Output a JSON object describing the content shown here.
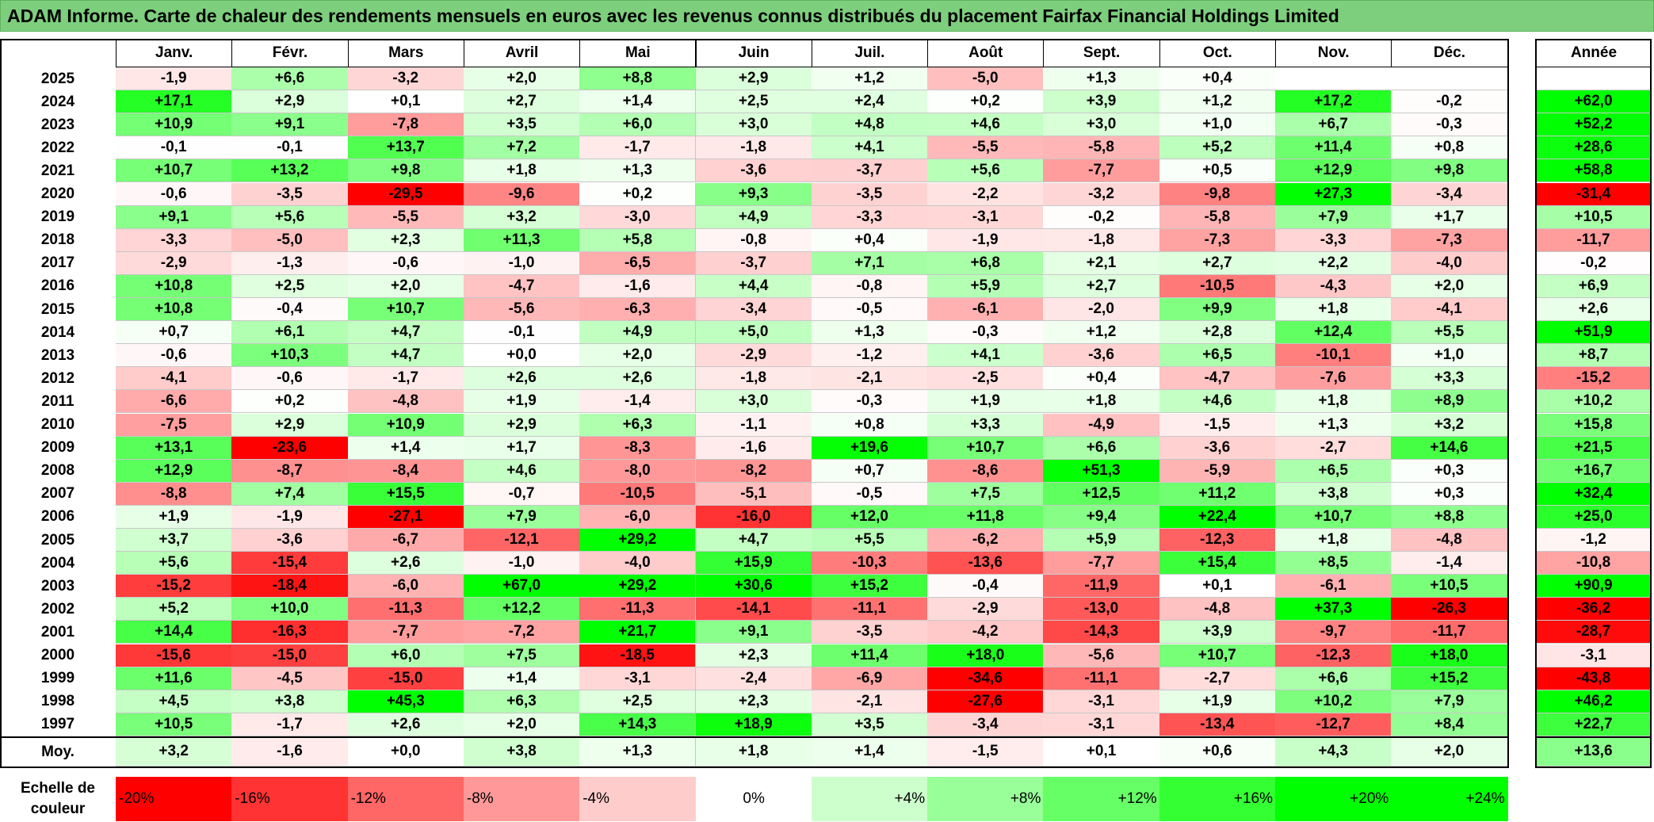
{
  "title": "ADAM Informe. Carte de chaleur des rendements mensuels en euros avec les revenus connus distribués du placement Fairfax Financial Holdings Limited",
  "chart_data": {
    "type": "heatmap",
    "columns": [
      "Janv.",
      "Févr.",
      "Mars",
      "Avril",
      "Mai",
      "Juin",
      "Juil.",
      "Août",
      "Sept.",
      "Oct.",
      "Nov.",
      "Déc."
    ],
    "year_header": "Année",
    "rows": [
      {
        "year": "2025",
        "values": [
          "-1,9",
          "+6,6",
          "-3,2",
          "+2,0",
          "+8,8",
          "+2,9",
          "+1,2",
          "-5,0",
          "+1,3",
          "+0,4",
          "",
          ""
        ],
        "total": ""
      },
      {
        "year": "2024",
        "values": [
          "+17,1",
          "+2,9",
          "+0,1",
          "+2,7",
          "+1,4",
          "+2,5",
          "+2,4",
          "+0,2",
          "+3,9",
          "+1,2",
          "+17,2",
          "-0,2"
        ],
        "total": "+62,0"
      },
      {
        "year": "2023",
        "values": [
          "+10,9",
          "+9,1",
          "-7,8",
          "+3,5",
          "+6,0",
          "+3,0",
          "+4,8",
          "+4,6",
          "+3,0",
          "+1,0",
          "+6,7",
          "-0,3"
        ],
        "total": "+52,2"
      },
      {
        "year": "2022",
        "values": [
          "-0,1",
          "-0,1",
          "+13,7",
          "+7,2",
          "-1,7",
          "-1,8",
          "+4,1",
          "-5,5",
          "-5,8",
          "+5,2",
          "+11,4",
          "+0,8"
        ],
        "total": "+28,6"
      },
      {
        "year": "2021",
        "values": [
          "+10,7",
          "+13,2",
          "+9,8",
          "+1,8",
          "+1,3",
          "-3,6",
          "-3,7",
          "+5,6",
          "-7,7",
          "+0,5",
          "+12,9",
          "+9,8"
        ],
        "total": "+58,8"
      },
      {
        "year": "2020",
        "values": [
          "-0,6",
          "-3,5",
          "-29,5",
          "-9,6",
          "+0,2",
          "+9,3",
          "-3,5",
          "-2,2",
          "-3,2",
          "-9,8",
          "+27,3",
          "-3,4"
        ],
        "total": "-31,4"
      },
      {
        "year": "2019",
        "values": [
          "+9,1",
          "+5,6",
          "-5,5",
          "+3,2",
          "-3,0",
          "+4,9",
          "-3,3",
          "-3,1",
          "-0,2",
          "-5,8",
          "+7,9",
          "+1,7"
        ],
        "total": "+10,5"
      },
      {
        "year": "2018",
        "values": [
          "-3,3",
          "-5,0",
          "+2,3",
          "+11,3",
          "+5,8",
          "-0,8",
          "+0,4",
          "-1,9",
          "-1,8",
          "-7,3",
          "-3,3",
          "-7,3"
        ],
        "total": "-11,7"
      },
      {
        "year": "2017",
        "values": [
          "-2,9",
          "-1,3",
          "-0,6",
          "-1,0",
          "-6,5",
          "-3,7",
          "+7,1",
          "+6,8",
          "+2,1",
          "+2,7",
          "+2,2",
          "-4,0"
        ],
        "total": "-0,2"
      },
      {
        "year": "2016",
        "values": [
          "+10,8",
          "+2,5",
          "+2,0",
          "-4,7",
          "-1,6",
          "+4,4",
          "-0,8",
          "+5,9",
          "+2,7",
          "-10,5",
          "-4,3",
          "+2,0"
        ],
        "total": "+6,9"
      },
      {
        "year": "2015",
        "values": [
          "+10,8",
          "-0,4",
          "+10,7",
          "-5,6",
          "-6,3",
          "-3,4",
          "-0,5",
          "-6,1",
          "-2,0",
          "+9,9",
          "+1,8",
          "-4,1"
        ],
        "total": "+2,6"
      },
      {
        "year": "2014",
        "values": [
          "+0,7",
          "+6,1",
          "+4,7",
          "-0,1",
          "+4,9",
          "+5,0",
          "+1,3",
          "-0,3",
          "+1,2",
          "+2,8",
          "+12,4",
          "+5,5"
        ],
        "total": "+51,9"
      },
      {
        "year": "2013",
        "values": [
          "-0,6",
          "+10,3",
          "+4,7",
          "+0,0",
          "+2,0",
          "-2,9",
          "-1,2",
          "+4,1",
          "-3,6",
          "+6,5",
          "-10,1",
          "+1,0"
        ],
        "total": "+8,7"
      },
      {
        "year": "2012",
        "values": [
          "-4,1",
          "-0,6",
          "-1,7",
          "+2,6",
          "+2,6",
          "-1,8",
          "-2,1",
          "-2,5",
          "+0,4",
          "-4,7",
          "-7,6",
          "+3,3"
        ],
        "total": "-15,2"
      },
      {
        "year": "2011",
        "values": [
          "-6,6",
          "+0,2",
          "-4,8",
          "+1,9",
          "-1,4",
          "+3,0",
          "-0,3",
          "+1,9",
          "+1,8",
          "+4,6",
          "+1,8",
          "+8,9"
        ],
        "total": "+10,2"
      },
      {
        "year": "2010",
        "values": [
          "-7,5",
          "+2,9",
          "+10,9",
          "+2,9",
          "+6,3",
          "-1,1",
          "+0,8",
          "+3,3",
          "-4,9",
          "-1,5",
          "+1,3",
          "+3,2"
        ],
        "total": "+15,8"
      },
      {
        "year": "2009",
        "values": [
          "+13,1",
          "-23,6",
          "+1,4",
          "+1,7",
          "-8,3",
          "-1,6",
          "+19,6",
          "+10,7",
          "+6,6",
          "-3,6",
          "-2,7",
          "+14,6"
        ],
        "total": "+21,5"
      },
      {
        "year": "2008",
        "values": [
          "+12,9",
          "-8,7",
          "-8,4",
          "+4,6",
          "-8,0",
          "-8,2",
          "+0,7",
          "-8,6",
          "+51,3",
          "-5,9",
          "+6,5",
          "+0,3"
        ],
        "total": "+16,7"
      },
      {
        "year": "2007",
        "values": [
          "-8,8",
          "+7,4",
          "+15,5",
          "-0,7",
          "-10,5",
          "-5,1",
          "-0,5",
          "+7,5",
          "+12,5",
          "+11,2",
          "+3,8",
          "+0,3"
        ],
        "total": "+32,4"
      },
      {
        "year": "2006",
        "values": [
          "+1,9",
          "-1,9",
          "-27,1",
          "+7,9",
          "-6,0",
          "-16,0",
          "+12,0",
          "+11,8",
          "+9,4",
          "+22,4",
          "+10,7",
          "+8,8"
        ],
        "total": "+25,0"
      },
      {
        "year": "2005",
        "values": [
          "+3,7",
          "-3,6",
          "-6,7",
          "-12,1",
          "+29,2",
          "+4,7",
          "+5,5",
          "-6,2",
          "+5,9",
          "-12,3",
          "+1,8",
          "-4,8"
        ],
        "total": "-1,2"
      },
      {
        "year": "2004",
        "values": [
          "+5,6",
          "-15,4",
          "+2,6",
          "-1,0",
          "-4,0",
          "+15,9",
          "-10,3",
          "-13,6",
          "-7,7",
          "+15,4",
          "+8,5",
          "-1,4"
        ],
        "total": "-10,8"
      },
      {
        "year": "2003",
        "values": [
          "-15,2",
          "-18,4",
          "-6,0",
          "+67,0",
          "+29,2",
          "+30,6",
          "+15,2",
          "-0,4",
          "-11,9",
          "+0,1",
          "-6,1",
          "+10,5"
        ],
        "total": "+90,9"
      },
      {
        "year": "2002",
        "values": [
          "+5,2",
          "+10,0",
          "-11,3",
          "+12,2",
          "-11,3",
          "-14,1",
          "-11,1",
          "-2,9",
          "-13,0",
          "-4,8",
          "+37,3",
          "-26,3"
        ],
        "total": "-36,2"
      },
      {
        "year": "2001",
        "values": [
          "+14,4",
          "-16,3",
          "-7,7",
          "-7,2",
          "+21,7",
          "+9,1",
          "-3,5",
          "-4,2",
          "-14,3",
          "+3,9",
          "-9,7",
          "-11,7"
        ],
        "total": "-28,7"
      },
      {
        "year": "2000",
        "values": [
          "-15,6",
          "-15,0",
          "+6,0",
          "+7,5",
          "-18,5",
          "+2,3",
          "+11,4",
          "+18,0",
          "-5,6",
          "+10,7",
          "-12,3",
          "+18,0"
        ],
        "total": "-3,1"
      },
      {
        "year": "1999",
        "values": [
          "+11,6",
          "-4,5",
          "-15,0",
          "+1,4",
          "-3,1",
          "-2,4",
          "-6,9",
          "-34,6",
          "-11,1",
          "-2,7",
          "+6,6",
          "+15,2"
        ],
        "total": "-43,8"
      },
      {
        "year": "1998",
        "values": [
          "+4,5",
          "+3,8",
          "+45,3",
          "+6,3",
          "+2,5",
          "+2,3",
          "-2,1",
          "-27,6",
          "-3,1",
          "+1,9",
          "+10,2",
          "+7,9"
        ],
        "total": "+46,2"
      },
      {
        "year": "1997",
        "values": [
          "+10,5",
          "-1,7",
          "+2,6",
          "+2,0",
          "+14,3",
          "+18,9",
          "+3,5",
          "-3,4",
          "-3,1",
          "-13,4",
          "-12,7",
          "+8,4"
        ],
        "total": "+22,7"
      }
    ],
    "average": {
      "label": "Moy.",
      "values": [
        "+3,2",
        "-1,6",
        "+0,0",
        "+3,8",
        "+1,3",
        "+1,8",
        "+1,4",
        "-1,5",
        "+0,1",
        "+0,6",
        "+4,3",
        "+2,0"
      ],
      "total": "+13,6"
    },
    "scale": {
      "label_line1": "Echelle de",
      "label_line2": "couleur",
      "steps": [
        "-20%",
        "-16%",
        "-12%",
        "-8%",
        "-4%",
        "0%",
        "+4%",
        "+8%",
        "+12%",
        "+16%",
        "+20%",
        "+24%"
      ]
    },
    "colors": {
      "negative_max": "#ff0000",
      "positive_max": "#00ff00",
      "neutral": "#ffffff",
      "title_bg": "#7dcf7d"
    }
  }
}
